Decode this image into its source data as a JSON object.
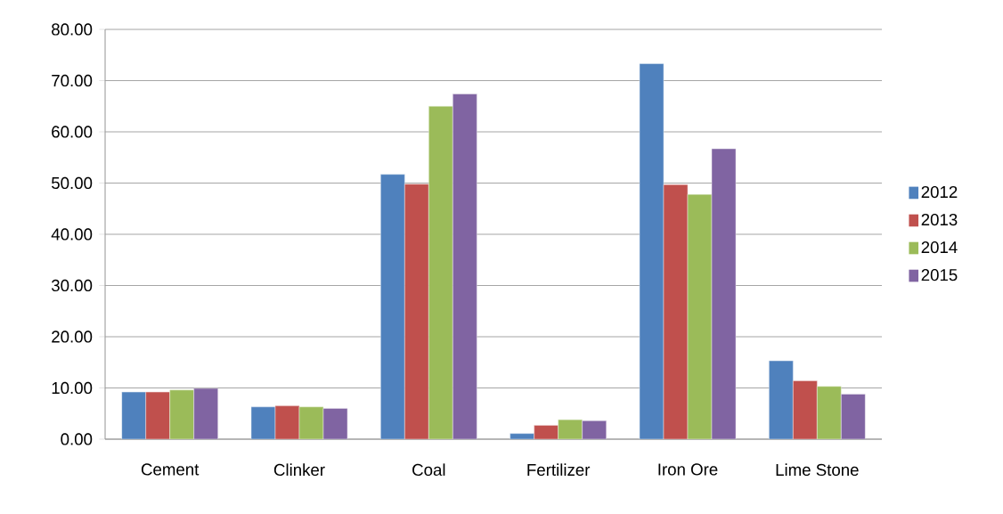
{
  "chart_data": {
    "type": "bar",
    "categories": [
      "Cement",
      "Clinker",
      "Coal",
      "Fertilizer",
      "Iron Ore",
      "Lime Stone"
    ],
    "series": [
      {
        "name": "2012",
        "color": "#4f81bd",
        "values": [
          9.2,
          6.3,
          51.7,
          1.1,
          73.3,
          15.3
        ]
      },
      {
        "name": "2013",
        "color": "#c0504d",
        "values": [
          9.2,
          6.5,
          49.8,
          2.7,
          49.7,
          11.4
        ]
      },
      {
        "name": "2014",
        "color": "#9bbb59",
        "values": [
          9.6,
          6.3,
          65.0,
          3.8,
          47.8,
          10.3
        ]
      },
      {
        "name": "2015",
        "color": "#8064a2",
        "values": [
          9.9,
          6.0,
          67.4,
          3.6,
          56.7,
          8.8
        ]
      }
    ],
    "ylim": [
      0,
      80
    ],
    "yticks": [
      {
        "value": 0,
        "label": "0.00"
      },
      {
        "value": 10,
        "label": "10.00"
      },
      {
        "value": 20,
        "label": "20.00"
      },
      {
        "value": 30,
        "label": "30.00"
      },
      {
        "value": 40,
        "label": "40.00"
      },
      {
        "value": 50,
        "label": "50.00"
      },
      {
        "value": 60,
        "label": "60.00"
      },
      {
        "value": 70,
        "label": "70.00"
      },
      {
        "value": 80,
        "label": "80.00"
      }
    ],
    "grid": "y",
    "legend": "right"
  }
}
